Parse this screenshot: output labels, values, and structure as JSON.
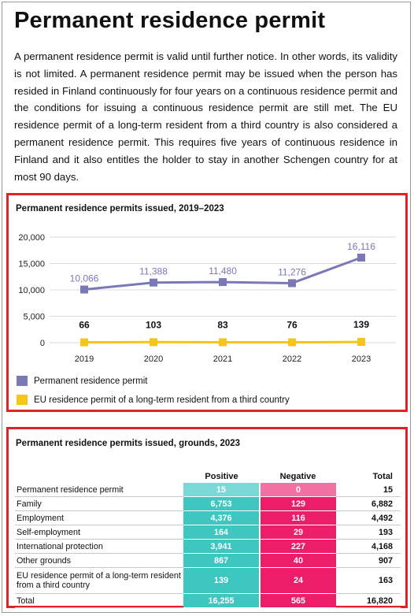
{
  "title": "Permanent residence permit",
  "intro": "A permanent residence permit is valid until further notice. In other words, its validity is not limited. A permanent residence permit may be issued when the person has resided in Finland continuously for four years on a continuous residence permit and the conditions for issuing a continuous residence permit are still met. The EU residence permit of a long-term resident from a third country is also considered a permanent residence permit. This requires five years of continuous residence in Finland and it also entitles the holder to stay in another Schengen country for at most 90 days.",
  "chart_data": {
    "type": "line",
    "title": "Permanent residence permits issued, 2019–2023",
    "x": [
      "2019",
      "2020",
      "2021",
      "2022",
      "2023"
    ],
    "ylim": [
      0,
      20000
    ],
    "yticks": [
      0,
      5000,
      10000,
      15000,
      20000
    ],
    "ytick_labels": [
      "0",
      "5,000",
      "10,000",
      "15,000",
      "20,000"
    ],
    "grid": true,
    "legend_position": "bottom",
    "series": [
      {
        "name": "Permanent residence permit",
        "color": "#7b78b8",
        "values": [
          10066,
          11388,
          11480,
          11276,
          16116
        ],
        "labels": [
          "10,066",
          "11,388",
          "11,480",
          "11,276",
          "16,116"
        ]
      },
      {
        "name": "EU residence permit of a long-term resident from a third country",
        "color": "#f5c518",
        "values": [
          66,
          103,
          83,
          76,
          139
        ],
        "labels": [
          "66",
          "103",
          "83",
          "76",
          "139"
        ]
      }
    ]
  },
  "table": {
    "title": "Permanent residence permits issued, grounds, 2023",
    "headers": [
      "",
      "Positive",
      "Negative",
      "Total"
    ],
    "colors": {
      "positive": "#3ec6c1",
      "negative": "#ec1e69"
    },
    "rows": [
      {
        "label": "Permanent residence permit",
        "positive": "15",
        "negative": "0",
        "total": "15"
      },
      {
        "label": "Family",
        "positive": "6,753",
        "negative": "129",
        "total": "6,882"
      },
      {
        "label": "Employment",
        "positive": "4,376",
        "negative": "116",
        "total": "4,492"
      },
      {
        "label": "Self-employment",
        "positive": "164",
        "negative": "29",
        "total": "193"
      },
      {
        "label": "International protection",
        "positive": "3,941",
        "negative": "227",
        "total": "4,168"
      },
      {
        "label": "Other grounds",
        "positive": "867",
        "negative": "40",
        "total": "907"
      },
      {
        "label": "EU residence permit of a long-term resident from a third country",
        "positive": "139",
        "negative": "24",
        "total": "163"
      }
    ],
    "total_row": {
      "label": "Total",
      "positive": "16,255",
      "negative": "565",
      "total": "16,820"
    }
  }
}
